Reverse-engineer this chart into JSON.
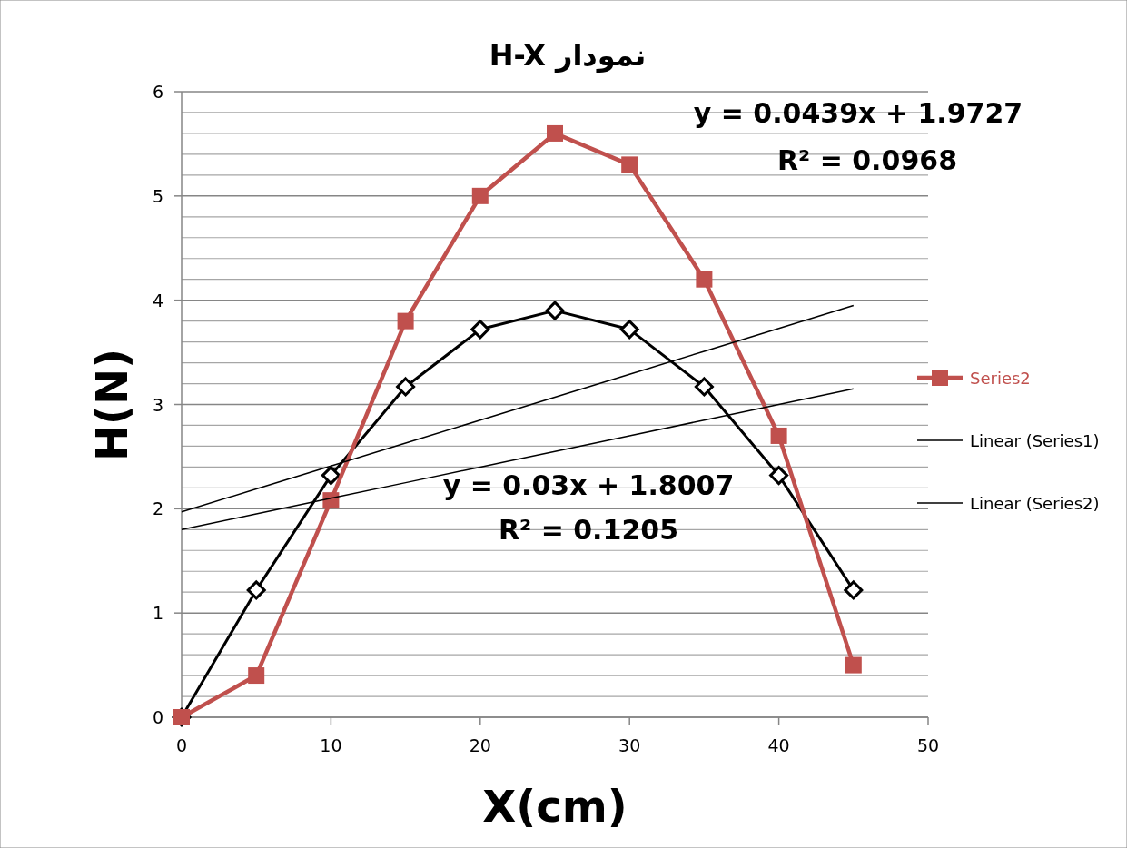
{
  "chart_data": {
    "type": "line",
    "title": "نمودار H-X",
    "xlabel": "X(cm)",
    "ylabel": "H(N)",
    "x": [
      0,
      5,
      10,
      15,
      20,
      25,
      30,
      35,
      40,
      45
    ],
    "series": [
      {
        "color": "#000000",
        "marker": "diamond",
        "values": [
          0,
          1.22,
          2.32,
          3.17,
          3.72,
          3.9,
          3.72,
          3.17,
          2.32,
          1.22
        ]
      },
      {
        "name": "Series2",
        "color": "#c0504d",
        "marker": "square",
        "values": [
          0,
          0.4,
          2.08,
          3.8,
          5.0,
          5.6,
          5.3,
          4.2,
          2.7,
          0.5
        ]
      },
      {
        "name": "Linear (Series1)",
        "color": "#000000",
        "marker": "none",
        "values": [
          1.8,
          1.95,
          2.1,
          2.25,
          2.4,
          2.55,
          2.7,
          2.85,
          3.0,
          3.15
        ]
      },
      {
        "name": "Linear (Series2)",
        "color": "#000000",
        "marker": "none",
        "values": [
          1.97,
          2.19,
          2.41,
          2.63,
          2.85,
          3.07,
          3.29,
          3.51,
          3.73,
          3.95
        ]
      }
    ],
    "annotations": [
      "y = 0.0439x + 1.9727",
      "R² = 0.0968",
      "y = 0.03x + 1.8007",
      "R² = 0.1205"
    ],
    "xlim": [
      0,
      50
    ],
    "xticks": [
      0,
      10,
      20,
      30,
      40,
      50
    ],
    "ylim": [
      0,
      6
    ],
    "yticks": [
      0,
      {
        "value": 0.2,
        "label": null
      },
      {
        "value": 0.4,
        "label": null
      },
      {
        "value": 0.6,
        "label": null
      },
      {
        "value": 0.8,
        "label": null
      },
      1,
      {
        "value": 1.2,
        "label": null
      },
      {
        "value": 1.4,
        "label": null
      },
      {
        "value": 1.6,
        "label": null
      },
      {
        "value": 1.8,
        "label": null
      },
      2,
      {
        "value": 2.2,
        "label": null
      },
      {
        "value": 2.4,
        "label": null
      },
      {
        "value": 2.6,
        "label": null
      },
      {
        "value": 2.8,
        "label": null
      },
      3,
      {
        "value": 3.2,
        "label": null
      },
      {
        "value": 3.4,
        "label": null
      },
      {
        "value": 3.6,
        "label": null
      },
      {
        "value": 3.8,
        "label": null
      },
      4,
      {
        "value": 4.2,
        "label": null
      },
      {
        "value": 4.4,
        "label": null
      },
      {
        "value": 4.6,
        "label": null
      },
      {
        "value": 4.8,
        "label": null
      },
      5,
      {
        "value": 5.2,
        "label": null
      },
      {
        "value": 5.4,
        "label": null
      },
      {
        "value": 5.6,
        "label": null
      },
      {
        "value": 5.8,
        "label": null
      },
      6
    ],
    "grid": "y",
    "legend": "right",
    "line_style": "solid"
  }
}
